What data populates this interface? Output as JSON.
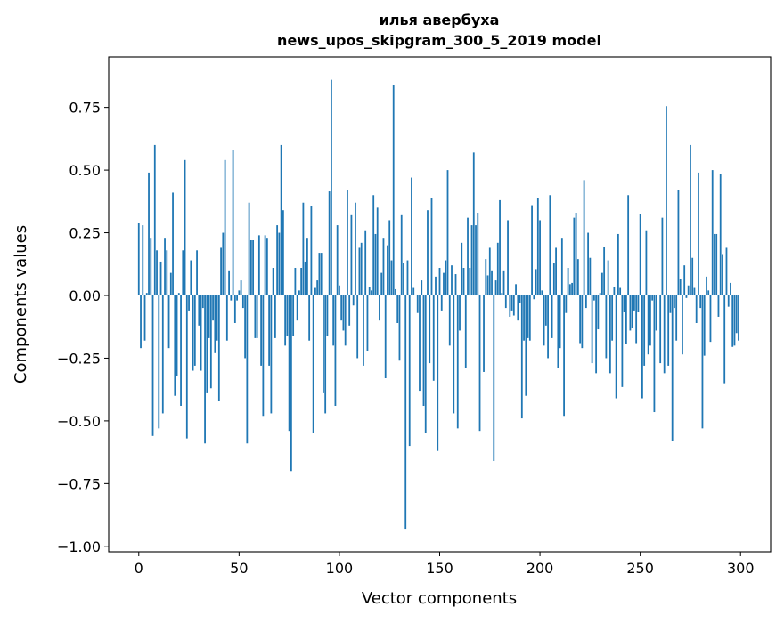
{
  "chart_data": {
    "type": "bar",
    "title": [
      "илья авербуха",
      "news_upos_skipgram_300_5_2019 model"
    ],
    "xlabel": "Vector components",
    "ylabel": "Components values",
    "xlim": [
      -15,
      315
    ],
    "ylim": [
      -1.022,
      0.951
    ],
    "xticks": [
      0,
      50,
      100,
      150,
      200,
      250,
      300
    ],
    "yticks": [
      -1.0,
      -0.75,
      -0.5,
      -0.25,
      0.0,
      0.25,
      0.5,
      0.75
    ],
    "ytick_labels": [
      "−1.00",
      "−0.75",
      "−0.50",
      "−0.25",
      "0.00",
      "0.25",
      "0.50",
      "0.75"
    ],
    "grid": false,
    "bar_color": "#1f77b4",
    "values": [
      0.29,
      -0.21,
      0.28,
      -0.18,
      0.01,
      0.49,
      0.23,
      -0.56,
      0.6,
      0.18,
      -0.53,
      0.135,
      -0.47,
      0.23,
      0.18,
      -0.21,
      0.09,
      0.41,
      -0.4,
      -0.32,
      0.01,
      -0.44,
      0.18,
      0.54,
      -0.57,
      -0.06,
      0.14,
      -0.3,
      -0.28,
      0.18,
      -0.12,
      -0.3,
      -0.05,
      -0.59,
      -0.39,
      -0.17,
      -0.37,
      -0.1,
      -0.23,
      -0.18,
      -0.42,
      0.19,
      0.25,
      0.54,
      -0.18,
      0.1,
      -0.02,
      0.58,
      -0.11,
      -0.02,
      0.02,
      0.06,
      -0.05,
      -0.25,
      -0.59,
      0.37,
      0.22,
      0.22,
      -0.17,
      -0.17,
      0.24,
      -0.28,
      -0.48,
      0.24,
      0.23,
      -0.28,
      -0.47,
      0.11,
      -0.17,
      0.28,
      0.25,
      0.6,
      0.34,
      -0.2,
      -0.16,
      -0.54,
      -0.7,
      -0.16,
      0.11,
      -0.1,
      0.02,
      0.11,
      0.37,
      0.135,
      0.23,
      -0.18,
      0.355,
      -0.55,
      0.03,
      0.06,
      0.17,
      0.17,
      -0.39,
      -0.47,
      -0.16,
      0.415,
      0.86,
      -0.2,
      -0.44,
      0.28,
      0.04,
      -0.1,
      -0.14,
      -0.2,
      0.42,
      -0.12,
      0.32,
      -0.04,
      0.37,
      -0.25,
      0.19,
      0.21,
      -0.28,
      0.26,
      -0.22,
      0.035,
      0.02,
      0.4,
      0.245,
      0.35,
      -0.1,
      0.09,
      0.23,
      -0.33,
      0.2,
      0.3,
      0.14,
      0.84,
      0.025,
      -0.11,
      -0.26,
      0.32,
      0.13,
      -0.93,
      0.14,
      -0.6,
      0.47,
      0.03,
      0.0,
      -0.07,
      -0.38,
      0.06,
      -0.44,
      -0.55,
      0.34,
      -0.27,
      0.39,
      -0.34,
      0.075,
      -0.62,
      0.11,
      -0.06,
      0.09,
      0.14,
      0.5,
      -0.2,
      0.12,
      -0.47,
      0.085,
      -0.53,
      -0.14,
      0.21,
      0.11,
      -0.29,
      0.31,
      0.11,
      0.28,
      0.57,
      0.28,
      0.33,
      -0.54,
      0.0,
      -0.305,
      0.145,
      0.08,
      0.19,
      0.1,
      -0.66,
      0.06,
      0.21,
      0.38,
      0.01,
      0.1,
      -0.05,
      0.3,
      -0.085,
      -0.06,
      -0.08,
      0.045,
      -0.1,
      -0.03,
      -0.49,
      -0.18,
      -0.4,
      -0.17,
      -0.18,
      0.36,
      -0.015,
      0.105,
      0.39,
      0.3,
      0.02,
      -0.2,
      -0.12,
      -0.25,
      0.4,
      -0.17,
      0.13,
      0.19,
      -0.29,
      -0.21,
      0.23,
      -0.48,
      -0.07,
      0.11,
      0.045,
      0.05,
      0.31,
      0.33,
      0.145,
      -0.19,
      -0.21,
      0.46,
      -0.05,
      0.25,
      0.15,
      -0.27,
      -0.02,
      -0.31,
      -0.135,
      0.01,
      0.09,
      0.195,
      -0.25,
      0.14,
      -0.31,
      -0.18,
      0.035,
      -0.41,
      0.245,
      0.03,
      -0.365,
      -0.065,
      -0.195,
      0.4,
      -0.14,
      -0.13,
      -0.06,
      -0.19,
      -0.065,
      0.325,
      -0.41,
      -0.28,
      0.26,
      -0.235,
      -0.2,
      -0.02,
      -0.465,
      -0.14,
      0.0,
      -0.27,
      0.31,
      -0.31,
      0.755,
      -0.28,
      -0.07,
      -0.58,
      -0.05,
      -0.18,
      0.42,
      0.065,
      -0.235,
      0.12,
      -0.01,
      0.04,
      0.6,
      0.15,
      0.03,
      -0.11,
      0.49,
      -0.05,
      -0.53,
      -0.24,
      0.075,
      0.02,
      -0.185,
      0.5,
      0.245,
      0.245,
      -0.085,
      0.485,
      0.165,
      -0.35,
      0.19,
      -0.045,
      0.05,
      -0.205,
      -0.2,
      -0.15,
      -0.18
    ]
  }
}
